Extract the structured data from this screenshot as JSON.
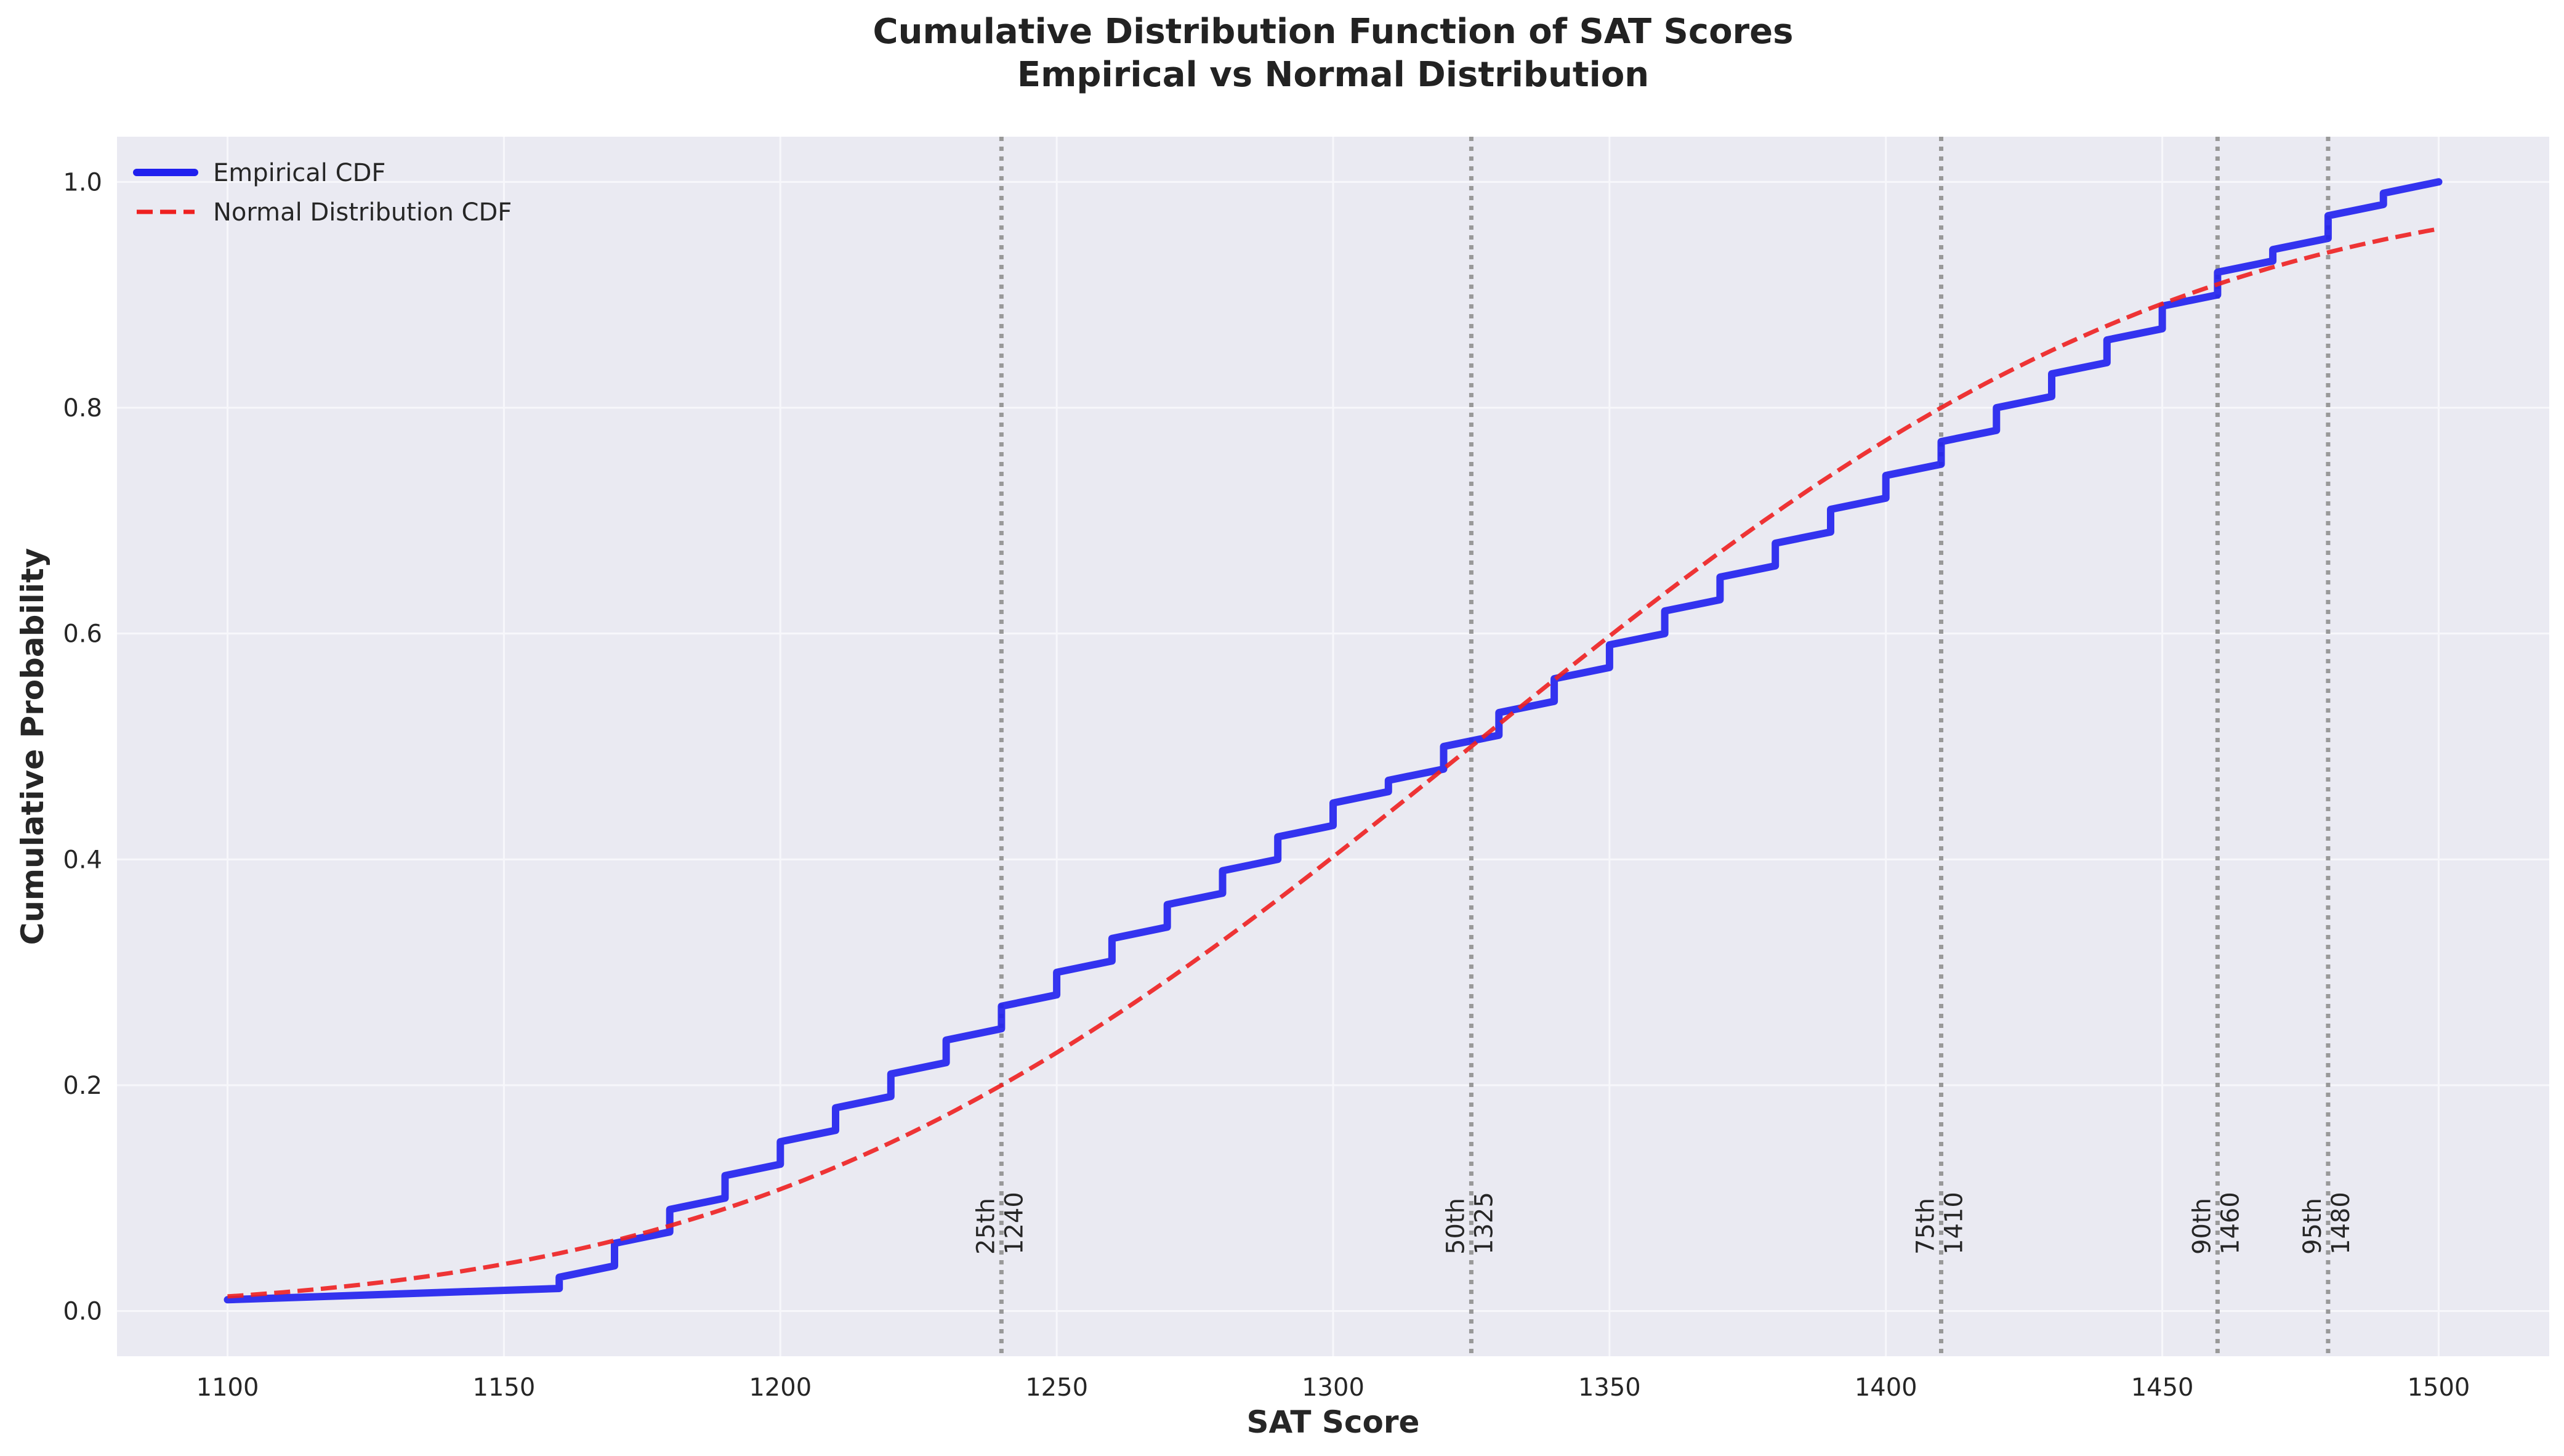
{
  "chart_data": {
    "type": "line",
    "title_line1": "Cumulative Distribution Function of SAT Scores",
    "title_line2": "Empirical vs Normal Distribution",
    "xlabel": "SAT Score",
    "ylabel": "Cumulative Probability",
    "xlim": [
      1080,
      1520
    ],
    "ylim": [
      -0.04,
      1.04
    ],
    "xticks": [
      1100,
      1150,
      1200,
      1250,
      1300,
      1350,
      1400,
      1450,
      1500
    ],
    "yticks": [
      0.0,
      0.2,
      0.4,
      0.6,
      0.8,
      1.0
    ],
    "xtick_labels": [
      "1100",
      "1150",
      "1200",
      "1250",
      "1300",
      "1350",
      "1400",
      "1450",
      "1500"
    ],
    "ytick_labels": [
      "0.0",
      "0.2",
      "0.4",
      "0.6",
      "0.8",
      "1.0"
    ],
    "grid": true,
    "legend_position": "top-left",
    "series": [
      {
        "name": "Empirical CDF",
        "style": "solid",
        "color": "#1f1fee",
        "points": [
          [
            1100,
            0.01
          ],
          [
            1160,
            0.02
          ],
          [
            1160,
            0.03
          ],
          [
            1170,
            0.04
          ],
          [
            1170,
            0.06
          ],
          [
            1180,
            0.07
          ],
          [
            1180,
            0.09
          ],
          [
            1190,
            0.1
          ],
          [
            1190,
            0.12
          ],
          [
            1200,
            0.13
          ],
          [
            1200,
            0.15
          ],
          [
            1210,
            0.16
          ],
          [
            1210,
            0.18
          ],
          [
            1220,
            0.19
          ],
          [
            1220,
            0.21
          ],
          [
            1230,
            0.22
          ],
          [
            1230,
            0.24
          ],
          [
            1240,
            0.25
          ],
          [
            1240,
            0.27
          ],
          [
            1250,
            0.28
          ],
          [
            1250,
            0.3
          ],
          [
            1260,
            0.31
          ],
          [
            1260,
            0.33
          ],
          [
            1270,
            0.34
          ],
          [
            1270,
            0.36
          ],
          [
            1280,
            0.37
          ],
          [
            1280,
            0.39
          ],
          [
            1290,
            0.4
          ],
          [
            1290,
            0.42
          ],
          [
            1300,
            0.43
          ],
          [
            1300,
            0.45
          ],
          [
            1310,
            0.46
          ],
          [
            1310,
            0.47
          ],
          [
            1320,
            0.48
          ],
          [
            1320,
            0.5
          ],
          [
            1330,
            0.51
          ],
          [
            1330,
            0.53
          ],
          [
            1340,
            0.54
          ],
          [
            1340,
            0.56
          ],
          [
            1350,
            0.57
          ],
          [
            1350,
            0.59
          ],
          [
            1360,
            0.6
          ],
          [
            1360,
            0.62
          ],
          [
            1370,
            0.63
          ],
          [
            1370,
            0.65
          ],
          [
            1380,
            0.66
          ],
          [
            1380,
            0.68
          ],
          [
            1390,
            0.69
          ],
          [
            1390,
            0.71
          ],
          [
            1400,
            0.72
          ],
          [
            1400,
            0.74
          ],
          [
            1410,
            0.75
          ],
          [
            1410,
            0.77
          ],
          [
            1420,
            0.78
          ],
          [
            1420,
            0.8
          ],
          [
            1430,
            0.81
          ],
          [
            1430,
            0.83
          ],
          [
            1440,
            0.84
          ],
          [
            1440,
            0.86
          ],
          [
            1450,
            0.87
          ],
          [
            1450,
            0.89
          ],
          [
            1460,
            0.9
          ],
          [
            1460,
            0.92
          ],
          [
            1470,
            0.93
          ],
          [
            1470,
            0.94
          ],
          [
            1480,
            0.95
          ],
          [
            1480,
            0.97
          ],
          [
            1490,
            0.98
          ],
          [
            1490,
            0.99
          ],
          [
            1500,
            1.0
          ]
        ]
      },
      {
        "name": "Normal Distribution CDF",
        "style": "dashed",
        "color": "#ee2020",
        "mean": 1325,
        "std": 101
      }
    ],
    "percentile_lines": [
      {
        "label": "25th",
        "value": 1240,
        "value_label": "1240"
      },
      {
        "label": "50th",
        "value": 1325,
        "value_label": "1325"
      },
      {
        "label": "75th",
        "value": 1410,
        "value_label": "1410"
      },
      {
        "label": "90th",
        "value": 1460,
        "value_label": "1460"
      },
      {
        "label": "95th",
        "value": 1480,
        "value_label": "1480"
      }
    ],
    "colors": {
      "plot_background": "#eaeaf2",
      "grid": "#f7f7fb",
      "percentile_line": "#999999"
    }
  }
}
